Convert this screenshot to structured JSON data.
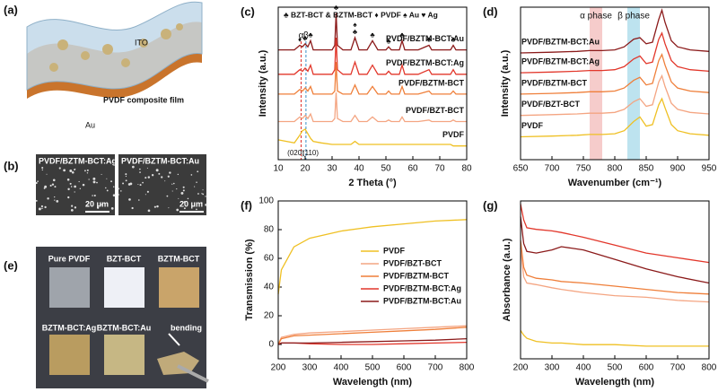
{
  "panels": {
    "a": {
      "label": "(a)",
      "texts": [
        "ITO",
        "PVDF  composite film",
        "Au"
      ]
    },
    "b": {
      "label": "(b)",
      "images": [
        {
          "caption": "PVDF/BZTM-BCT:Ag",
          "scale": "20 μm"
        },
        {
          "caption": "PVDF/BZTM-BCT:Au",
          "scale": "20 μm"
        }
      ]
    },
    "e": {
      "label": "(e)",
      "samples": [
        "Pure PVDF",
        "BZT-BCT",
        "BZTM-BCT",
        "BZTM-BCT:Ag",
        "BZTM-BCT:Au"
      ],
      "note": "bending"
    }
  },
  "chart_data": [
    {
      "type": "line",
      "panel_label": "(c)",
      "x_label": "2 Theta (°)",
      "y_label": "Intensity (a.u.)",
      "legend_text": "♣ BZT-BCT & BZTM-BCT  ♦ PVDF  ♠ Au  ♥ Ag",
      "series_label_position": "right",
      "xlim": [
        10,
        80
      ],
      "xticks": [
        10,
        20,
        30,
        40,
        50,
        60,
        70,
        80
      ],
      "ylim": [
        0,
        10
      ],
      "x": [
        10,
        16,
        18,
        19,
        20,
        21,
        22,
        23,
        26,
        30,
        31,
        31.5,
        32,
        34,
        37,
        38.5,
        40,
        43,
        45,
        47,
        50,
        51,
        52,
        55,
        56,
        57,
        62,
        66,
        67,
        70,
        74,
        75,
        76,
        80
      ],
      "reference_lines": [
        {
          "x": 18.5,
          "color": "#e0302a",
          "label": "α"
        },
        {
          "x": 20.3,
          "color": "#3a8fc9",
          "label": "β"
        }
      ],
      "annotations": [
        {
          "x": 16.5,
          "label": "(020)"
        },
        {
          "x": 22,
          "label": "(110)"
        }
      ],
      "peak_markers": [
        {
          "x": 18,
          "label": "♦"
        },
        {
          "x": 20,
          "label": "♣"
        },
        {
          "x": 22,
          "label": "♣"
        },
        {
          "x": 31.5,
          "label": "♣"
        },
        {
          "x": 38.5,
          "label": "♣"
        },
        {
          "x": 38.5,
          "label": "♠"
        },
        {
          "x": 45,
          "label": "♣"
        },
        {
          "x": 51,
          "label": "♣"
        },
        {
          "x": 56,
          "label": "♣"
        },
        {
          "x": 66,
          "label": "♣"
        },
        {
          "x": 75,
          "label": "♣"
        }
      ],
      "series": [
        {
          "name": "PVDF/BZTM-BCT:Au",
          "color": "#8b1a1a",
          "values": [
            7.2,
            7.2,
            7.5,
            7.4,
            7.6,
            7.4,
            7.8,
            7.2,
            7.2,
            7.2,
            7.5,
            9.6,
            7.5,
            7.2,
            7.2,
            8.0,
            7.2,
            7.2,
            7.8,
            7.2,
            7.2,
            7.4,
            7.2,
            7.2,
            7.8,
            7.2,
            7.2,
            7.5,
            7.2,
            7.2,
            7.2,
            7.5,
            7.2,
            7.2
          ]
        },
        {
          "name": "PVDF/BZTM-BCT:Ag",
          "color": "#e2372b",
          "values": [
            5.6,
            5.6,
            5.9,
            5.8,
            6.0,
            5.8,
            6.2,
            5.6,
            5.6,
            5.6,
            5.9,
            8.0,
            5.9,
            5.6,
            5.6,
            6.4,
            5.6,
            5.6,
            6.2,
            5.6,
            5.6,
            5.8,
            5.6,
            5.6,
            6.2,
            5.6,
            5.6,
            5.9,
            5.6,
            5.6,
            5.6,
            5.9,
            5.6,
            5.6
          ]
        },
        {
          "name": "PVDF/BZTM-BCT",
          "color": "#ef7f3a",
          "values": [
            4.3,
            4.3,
            4.6,
            4.5,
            4.7,
            4.5,
            4.8,
            4.3,
            4.3,
            4.3,
            4.5,
            6.4,
            4.5,
            4.3,
            4.3,
            4.9,
            4.3,
            4.3,
            4.8,
            4.3,
            4.3,
            4.5,
            4.3,
            4.3,
            4.8,
            4.3,
            4.3,
            4.5,
            4.3,
            4.3,
            4.3,
            4.5,
            4.3,
            4.3
          ]
        },
        {
          "name": "PVDF/BZT-BCT",
          "color": "#f4a582",
          "values": [
            2.5,
            2.5,
            2.8,
            2.7,
            2.9,
            2.7,
            3.0,
            2.5,
            2.5,
            2.5,
            2.7,
            4.4,
            2.7,
            2.5,
            2.5,
            2.9,
            2.5,
            2.5,
            2.8,
            2.5,
            2.5,
            2.6,
            2.5,
            2.5,
            2.8,
            2.5,
            2.5,
            2.6,
            2.5,
            2.5,
            2.5,
            2.6,
            2.5,
            2.5
          ]
        },
        {
          "name": "PVDF",
          "color": "#efc023",
          "values": [
            1.3,
            1.1,
            1.6,
            1.9,
            2.0,
            1.7,
            1.4,
            1.2,
            1.1,
            1.0,
            1.0,
            1.0,
            1.0,
            1.0,
            1.0,
            1.2,
            1.0,
            1.0,
            1.0,
            1.0,
            1.0,
            1.0,
            1.0,
            1.0,
            1.0,
            1.0,
            1.0,
            1.0,
            1.0,
            1.0,
            1.0,
            0.9,
            0.9,
            0.9
          ]
        }
      ]
    },
    {
      "type": "line",
      "panel_label": "(d)",
      "x_label": "Wavenumber (cm⁻¹)",
      "y_label": "Intensity (a.u.)",
      "series_label_position": "left",
      "xlim": [
        650,
        950
      ],
      "xticks": [
        650,
        700,
        750,
        800,
        850,
        900,
        950
      ],
      "ylim": [
        0,
        10
      ],
      "x": [
        650,
        700,
        740,
        760,
        780,
        800,
        815,
        830,
        840,
        850,
        860,
        870,
        875,
        880,
        890,
        900,
        920,
        950
      ],
      "bands": [
        {
          "from": 760,
          "to": 780,
          "color": "#f6cccb",
          "label": "α phase"
        },
        {
          "from": 820,
          "to": 840,
          "color": "#bde3ef",
          "label": "β phase"
        }
      ],
      "series": [
        {
          "name": "PVDF/BZTM-BCT:Au",
          "color": "#8b1a1a",
          "values": [
            7.0,
            7.05,
            7.1,
            7.15,
            7.15,
            7.2,
            7.4,
            7.9,
            8.0,
            7.6,
            7.7,
            9.2,
            9.8,
            9.0,
            7.8,
            7.4,
            7.2,
            7.1
          ]
        },
        {
          "name": "PVDF/BZTM-BCT:Ag",
          "color": "#e2372b",
          "values": [
            5.7,
            5.75,
            5.8,
            5.85,
            5.85,
            5.9,
            6.1,
            6.6,
            6.8,
            6.3,
            6.4,
            7.9,
            8.3,
            7.6,
            6.5,
            6.1,
            5.9,
            5.8
          ]
        },
        {
          "name": "PVDF/BZTM-BCT",
          "color": "#ef7f3a",
          "values": [
            4.3,
            4.35,
            4.4,
            4.45,
            4.45,
            4.5,
            4.7,
            5.2,
            5.4,
            4.9,
            5.0,
            6.5,
            6.9,
            6.2,
            5.1,
            4.7,
            4.5,
            4.4
          ]
        },
        {
          "name": "PVDF/BZT-BCT",
          "color": "#f4a582",
          "values": [
            2.9,
            2.95,
            3.0,
            3.05,
            3.05,
            3.1,
            3.3,
            3.8,
            4.0,
            3.5,
            3.6,
            5.1,
            5.5,
            4.8,
            3.7,
            3.3,
            3.1,
            3.0
          ]
        },
        {
          "name": "PVDF",
          "color": "#efc023",
          "values": [
            1.5,
            1.55,
            1.6,
            1.65,
            1.65,
            1.7,
            1.9,
            2.5,
            2.8,
            2.2,
            2.3,
            3.6,
            4.0,
            3.4,
            2.3,
            1.9,
            1.7,
            1.6
          ]
        }
      ]
    },
    {
      "type": "line",
      "panel_label": "(f)",
      "x_label": "Wavelength (nm)",
      "y_label": "Transmission (%)",
      "legend": "right",
      "xlim": [
        200,
        800
      ],
      "xticks": [
        200,
        300,
        400,
        500,
        600,
        700,
        800
      ],
      "ylim": [
        -10,
        100
      ],
      "yticks": [
        0,
        20,
        40,
        60,
        80,
        100
      ],
      "x": [
        200,
        210,
        250,
        300,
        400,
        500,
        600,
        700,
        800
      ],
      "series": [
        {
          "name": "PVDF",
          "color": "#efc023",
          "values": [
            35,
            52,
            68,
            74,
            79,
            82,
            84,
            86,
            87
          ]
        },
        {
          "name": "PVDF/BZT-BCT",
          "color": "#f4a582",
          "values": [
            0,
            5,
            7,
            8,
            9,
            10,
            11,
            12,
            13
          ]
        },
        {
          "name": "PVDF/BZTM-BCT",
          "color": "#ef7f3a",
          "values": [
            0,
            4,
            6,
            6.5,
            7.5,
            8.5,
            9.5,
            10.5,
            12
          ]
        },
        {
          "name": "PVDF/BZTM-BCT:Ag",
          "color": "#e2372b",
          "values": [
            0,
            1,
            1,
            0.5,
            0,
            0,
            0.5,
            1,
            1.5
          ]
        },
        {
          "name": "PVDF/BZTM-BCT:Au",
          "color": "#8b1a1a",
          "values": [
            0,
            1,
            1,
            1,
            1.5,
            2,
            2.5,
            3,
            4
          ]
        }
      ]
    },
    {
      "type": "line",
      "panel_label": "(g)",
      "x_label": "Wavelength (nm)",
      "y_label": "Absorbance (a.u.)",
      "xlim": [
        200,
        800
      ],
      "xticks": [
        200,
        300,
        400,
        500,
        600,
        700,
        800
      ],
      "ylim": [
        0,
        10
      ],
      "x": [
        200,
        210,
        220,
        250,
        300,
        330,
        400,
        500,
        600,
        700,
        800
      ],
      "series": [
        {
          "name": "PVDF/BZTM-BCT:Ag",
          "color": "#e2372b",
          "values": [
            9.8,
            8.8,
            8.3,
            8.2,
            8.1,
            8.0,
            7.7,
            7.2,
            6.7,
            6.4,
            6.1
          ]
        },
        {
          "name": "PVDF/BZTM-BCT:Au",
          "color": "#8b1a1a",
          "values": [
            9.0,
            7.3,
            6.8,
            6.7,
            6.9,
            7.1,
            6.9,
            6.3,
            5.7,
            5.2,
            4.8
          ]
        },
        {
          "name": "PVDF/BZTM-BCT",
          "color": "#ef7f3a",
          "values": [
            7.5,
            5.8,
            5.3,
            5.1,
            5.0,
            4.9,
            4.8,
            4.6,
            4.4,
            4.2,
            4.1
          ]
        },
        {
          "name": "PVDF/BZT-BCT",
          "color": "#f4a582",
          "values": [
            7.0,
            5.2,
            4.8,
            4.7,
            4.5,
            4.4,
            4.2,
            4.0,
            3.9,
            3.7,
            3.6
          ]
        },
        {
          "name": "PVDF",
          "color": "#efc023",
          "values": [
            1.8,
            1.5,
            1.3,
            1.1,
            1.0,
            1.0,
            0.9,
            0.9,
            0.8,
            0.8,
            0.8
          ]
        }
      ]
    }
  ]
}
